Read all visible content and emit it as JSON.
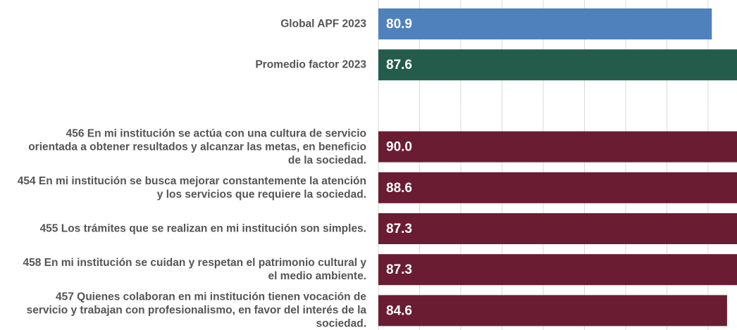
{
  "chart_data": {
    "type": "barh",
    "categories": [
      "Global APF 2023",
      "Promedio factor 2023",
      null,
      "456 En mi institución se actúa con una cultura de servicio orientada a obtener resultados y alcanzar las metas, en beneficio de la sociedad.",
      "454 En mi institución se busca mejorar constantemente la atención y los servicios que requiere la sociedad.",
      "455 Los trámites que se realizan en mi institución son simples.",
      "458 En mi institución se cuidan y respetan el patrimonio cultural y el medio ambiente.",
      "457 Quienes colaboran en mi institución tienen vocación de servicio y trabajan con profesionalismo, en favor del interés de la sociedad."
    ],
    "values": [
      80.9,
      87.6,
      null,
      90,
      88.6,
      87.3,
      87.3,
      84.6
    ],
    "value_labels": [
      "80.9",
      "87.6",
      null,
      "90.0",
      "88.6",
      "87.3",
      "87.3",
      "84.6"
    ],
    "colors": [
      "#4f81bd",
      "#245c4c",
      null,
      "#6a1c32",
      "#6a1c32",
      "#6a1c32",
      "#6a1c32",
      "#6a1c32"
    ],
    "xlim": [
      0,
      100
    ],
    "xticks": [
      0,
      10,
      20,
      30,
      40,
      50,
      60,
      70,
      80,
      90,
      100
    ],
    "grid": true
  }
}
